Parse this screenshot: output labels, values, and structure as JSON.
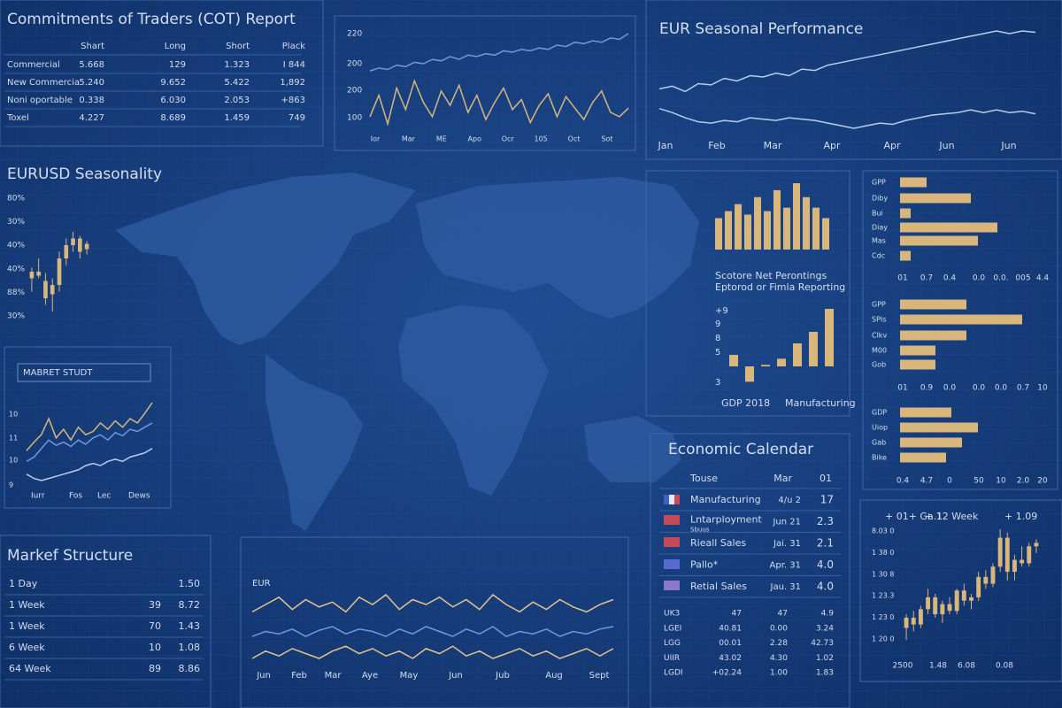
{
  "colors": {
    "gold": "#d8b67c",
    "blue": "#6e9ae0",
    "light": "#b7cdf0"
  },
  "cot": {
    "title": "Commitments of Traders (COT) Report",
    "headers": [
      "Shart",
      "Long",
      "Short",
      "Plack"
    ],
    "rows": [
      {
        "label": "Commercial",
        "cells": [
          "5.668",
          "129",
          "1.323",
          "I 844"
        ]
      },
      {
        "label": "New Commercia",
        "cells": [
          "5.240",
          "9.652",
          "5.422",
          "1,892"
        ]
      },
      {
        "label": "Noni oportable",
        "cells": [
          "0.338",
          "6.030",
          "2.053",
          "+863"
        ]
      },
      {
        "label": "Toxel",
        "cells": [
          "4.227",
          "8.689",
          "1.459",
          "749"
        ]
      }
    ]
  },
  "price_chart": {
    "type": "line",
    "ylabels": [
      "220",
      "200",
      "200",
      "100"
    ],
    "xlabels": [
      "Ior",
      "Mar",
      "ME",
      "Apo",
      "Ocr",
      "105",
      "Oct",
      "Sot"
    ],
    "series": [
      {
        "color": "#6e9ae0",
        "values": [
          62,
          64,
          63,
          66,
          65,
          68,
          67,
          70,
          69,
          72,
          70,
          73,
          72,
          74,
          73,
          76,
          75,
          77,
          76,
          78,
          77,
          80,
          79,
          82,
          81,
          83,
          82,
          85,
          84,
          88
        ]
      },
      {
        "color": "#d8b67c",
        "values": [
          30,
          45,
          25,
          50,
          35,
          55,
          40,
          30,
          48,
          38,
          52,
          33,
          45,
          28,
          40,
          50,
          35,
          42,
          26,
          38,
          46,
          30,
          44,
          36,
          28,
          40,
          48,
          33,
          30,
          36
        ]
      }
    ]
  },
  "seasonal": {
    "type": "line",
    "title": "EUR Seasonal Performance",
    "xlabels": [
      "Jan",
      "Feb",
      "Mar",
      "Apr",
      "Apr",
      "Jun",
      "Jun"
    ],
    "series": [
      {
        "color": "#b7cdf0",
        "values": [
          40,
          42,
          38,
          44,
          43,
          48,
          46,
          50,
          49,
          52,
          50,
          55,
          54,
          58,
          60,
          62,
          64,
          66,
          68,
          70,
          72,
          74,
          76,
          78,
          80,
          82,
          84,
          82,
          84,
          83
        ]
      },
      {
        "color": "#b7cdf0",
        "values": [
          25,
          22,
          18,
          15,
          14,
          16,
          15,
          18,
          17,
          16,
          18,
          17,
          16,
          14,
          12,
          10,
          12,
          14,
          13,
          16,
          18,
          20,
          21,
          22,
          24,
          22,
          24,
          22,
          23,
          21
        ]
      }
    ]
  },
  "seasonality": {
    "type": "candlestick",
    "title": "EURUSD Seasonality",
    "ylabels": [
      "80%",
      "30%",
      "40%",
      "40%",
      "88%",
      "30%"
    ],
    "candles": [
      {
        "o": 40,
        "h": 48,
        "l": 30,
        "c": 45
      },
      {
        "o": 45,
        "h": 55,
        "l": 40,
        "c": 42
      },
      {
        "o": 38,
        "h": 44,
        "l": 20,
        "c": 25
      },
      {
        "o": 28,
        "h": 40,
        "l": 15,
        "c": 35
      },
      {
        "o": 35,
        "h": 60,
        "l": 30,
        "c": 55
      },
      {
        "o": 55,
        "h": 70,
        "l": 50,
        "c": 65
      },
      {
        "o": 65,
        "h": 75,
        "l": 60,
        "c": 70
      },
      {
        "o": 70,
        "h": 72,
        "l": 55,
        "c": 60
      },
      {
        "o": 62,
        "h": 68,
        "l": 58,
        "c": 66
      }
    ]
  },
  "market_study": {
    "type": "line",
    "label": "MABRET STUDT",
    "ylabels": [
      "10",
      "11",
      "10",
      "9"
    ],
    "xlabels": [
      "Iurr",
      "Fos",
      "Lec",
      "Dews"
    ],
    "series": [
      {
        "color": "#d8b67c",
        "values": [
          40,
          48,
          55,
          70,
          52,
          60,
          50,
          62,
          55,
          58,
          66,
          60,
          68,
          62,
          70,
          66,
          75,
          85
        ]
      },
      {
        "color": "#6e9ae0",
        "values": [
          30,
          34,
          42,
          50,
          45,
          48,
          44,
          50,
          46,
          52,
          55,
          50,
          57,
          54,
          60,
          58,
          62,
          66
        ]
      },
      {
        "color": "#b7cdf0",
        "values": [
          18,
          14,
          12,
          14,
          16,
          18,
          20,
          22,
          26,
          28,
          26,
          30,
          32,
          30,
          34,
          36,
          38,
          42
        ]
      }
    ]
  },
  "market_structure": {
    "title": "Markef Structure",
    "rows": [
      {
        "label": "1 Day",
        "value": "1.50"
      },
      {
        "label": "1 Week",
        "count": "39",
        "value": "8.72"
      },
      {
        "label": "1 Week",
        "count": "70",
        "value": "1.43"
      },
      {
        "label": "6 Week",
        "count": "10",
        "value": "1.08"
      },
      {
        "label": "64 Week",
        "count": "89",
        "value": "8.86"
      }
    ]
  },
  "eur_chart": {
    "type": "line",
    "label": "EUR",
    "xlabels": [
      "Jun",
      "Feb",
      "Mar",
      "Aye",
      "May",
      "Jun",
      "Jub",
      "Aug",
      "Sept"
    ],
    "series": [
      {
        "color": "#e2c48e",
        "values": [
          60,
          66,
          72,
          62,
          70,
          64,
          68,
          60,
          72,
          66,
          74,
          62,
          70,
          66,
          72,
          64,
          70,
          62,
          74,
          66,
          60,
          68,
          62,
          70,
          64,
          60,
          66,
          70
        ]
      },
      {
        "color": "#6e9ae0",
        "values": [
          40,
          44,
          42,
          46,
          40,
          45,
          48,
          42,
          46,
          44,
          40,
          46,
          42,
          48,
          44,
          40,
          46,
          42,
          48,
          40,
          44,
          42,
          46,
          40,
          44,
          42,
          46,
          48
        ]
      },
      {
        "color": "#e2c48e",
        "values": [
          22,
          28,
          24,
          30,
          26,
          22,
          28,
          32,
          26,
          30,
          24,
          28,
          22,
          30,
          26,
          32,
          24,
          28,
          22,
          26,
          30,
          24,
          28,
          22,
          26,
          30,
          24,
          30
        ]
      }
    ]
  },
  "reporting_bars": {
    "type": "bar",
    "caption": [
      "Scotore  Net Perontings",
      "Eptorod or Fimla Reporting"
    ],
    "color": "#d8b67c",
    "values": [
      45,
      55,
      65,
      50,
      75,
      55,
      85,
      60,
      95,
      75,
      60,
      45
    ]
  },
  "gdp_bars": {
    "type": "bar",
    "ylabels": [
      "+9",
      "9",
      "8",
      "5",
      "3"
    ],
    "xlabels": [
      "GDP 2018",
      "Manufacturing"
    ],
    "color": "#d8b67c",
    "values": [
      1.5,
      -2,
      0.2,
      1,
      3,
      4.5,
      7.5
    ]
  },
  "hbars": [
    {
      "type": "bar",
      "categories": [
        "GPP",
        "Diby",
        "Bui",
        "Diay",
        "Mas",
        "Cdc"
      ],
      "values": [
        30,
        80,
        12,
        110,
        88,
        12
      ],
      "xlabels": [
        "01",
        "0.7",
        "0.4",
        "0.0",
        "0.0.",
        "005",
        "4.4"
      ]
    },
    {
      "type": "bar",
      "categories": [
        "GPP",
        "SPIs",
        "Clkv",
        "M00",
        "Gob"
      ],
      "values": [
        75,
        138,
        75,
        40,
        40
      ],
      "xlabels": [
        "01",
        "0.9",
        "0.0",
        "0.0",
        "0.0",
        "0.7",
        "10"
      ]
    },
    {
      "type": "bar",
      "categories": [
        "GDP",
        "Uiop",
        "Gab",
        "Bike"
      ],
      "values": [
        58,
        88,
        70,
        52
      ],
      "xlabels": [
        "0.4",
        "4.7",
        "0",
        "50",
        "10",
        "2.0",
        "20"
      ]
    }
  ],
  "calendar": {
    "title": "Economic Calendar",
    "headers": [
      "Touse",
      "Mar",
      "01"
    ],
    "rows": [
      {
        "event": "Manufacturing",
        "date": "4/u 2",
        "value": "17"
      },
      {
        "event": "Lntarployment",
        "note": "Sbuus",
        "date": "Jun 21",
        "value": "2.3"
      },
      {
        "event": "Rieall Sales",
        "date": "Jai. 31",
        "value": "2.1"
      },
      {
        "event": "Pallo*",
        "date": "Apr. 31",
        "value": "4.0"
      },
      {
        "event": "Retial Sales",
        "date": "Jau. 31",
        "value": "4.0"
      }
    ],
    "table": [
      [
        "UK3",
        "47",
        "47",
        "4.9"
      ],
      [
        "LGEI",
        "40.81",
        "0.00",
        "3.24"
      ],
      [
        "LGG",
        "00.01",
        "2.28",
        "42.73"
      ],
      [
        "UIIR",
        "43.02",
        "4.30",
        "1.02"
      ],
      [
        "LGDI",
        "+02.24",
        "1.00",
        "1.83"
      ]
    ]
  },
  "candle_chart": {
    "type": "candlestick",
    "header": [
      "+ 01+ Ga.1",
      "+ 12 Week",
      "+ 1.09"
    ],
    "ylabels": [
      "8.03 0",
      "1 38 0",
      "1 30 8",
      "1 23.3",
      "1 23 0",
      "1 20 0"
    ],
    "xlabels": [
      "2500",
      "1.48",
      "6.08",
      "0.08"
    ],
    "candles": [
      {
        "o": 22,
        "h": 30,
        "l": 15,
        "c": 28
      },
      {
        "o": 28,
        "h": 32,
        "l": 20,
        "c": 24
      },
      {
        "o": 24,
        "h": 35,
        "l": 22,
        "c": 33
      },
      {
        "o": 33,
        "h": 45,
        "l": 30,
        "c": 40
      },
      {
        "o": 40,
        "h": 42,
        "l": 28,
        "c": 30
      },
      {
        "o": 30,
        "h": 38,
        "l": 25,
        "c": 36
      },
      {
        "o": 36,
        "h": 40,
        "l": 30,
        "c": 32
      },
      {
        "o": 32,
        "h": 45,
        "l": 30,
        "c": 44
      },
      {
        "o": 44,
        "h": 48,
        "l": 35,
        "c": 38
      },
      {
        "o": 38,
        "h": 42,
        "l": 33,
        "c": 40
      },
      {
        "o": 40,
        "h": 55,
        "l": 38,
        "c": 52
      },
      {
        "o": 52,
        "h": 56,
        "l": 45,
        "c": 48
      },
      {
        "o": 48,
        "h": 60,
        "l": 46,
        "c": 58
      },
      {
        "o": 58,
        "h": 80,
        "l": 55,
        "c": 75
      },
      {
        "o": 75,
        "h": 78,
        "l": 50,
        "c": 55
      },
      {
        "o": 55,
        "h": 65,
        "l": 50,
        "c": 62
      },
      {
        "o": 62,
        "h": 70,
        "l": 58,
        "c": 60
      },
      {
        "o": 60,
        "h": 72,
        "l": 58,
        "c": 70
      },
      {
        "o": 70,
        "h": 74,
        "l": 66,
        "c": 72
      }
    ]
  }
}
